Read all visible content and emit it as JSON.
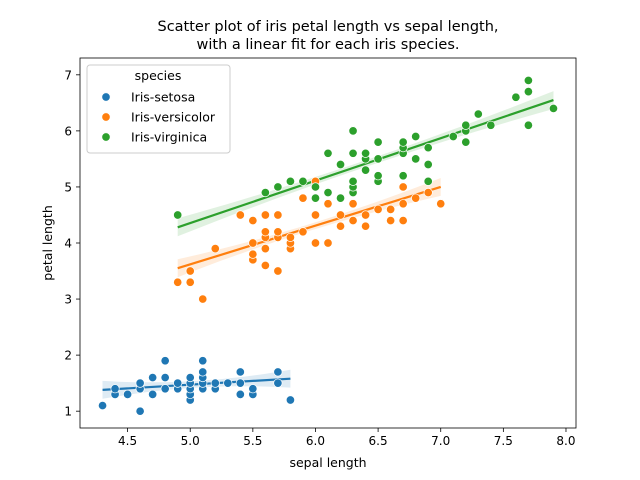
{
  "chart_data": {
    "type": "scatter",
    "title": [
      "Scatter plot of iris petal length vs sepal length,",
      "with a linear fit for each iris species."
    ],
    "xlabel": "sepal length",
    "ylabel": "petal length",
    "xlim": [
      4.12,
      8.08
    ],
    "ylim": [
      0.7,
      7.3
    ],
    "xticks": [
      "4.5",
      "5.0",
      "5.5",
      "6.0",
      "6.5",
      "7.0",
      "7.5",
      "8.0"
    ],
    "yticks": [
      "1",
      "2",
      "3",
      "4",
      "5",
      "6",
      "7"
    ],
    "grid": false,
    "legend": {
      "title": "species",
      "placement": "top-left"
    },
    "series": [
      {
        "name": "Iris-setosa",
        "color": "#1f77b4",
        "points": [
          [
            4.3,
            1.1
          ],
          [
            4.4,
            1.3
          ],
          [
            4.4,
            1.4
          ],
          [
            4.5,
            1.3
          ],
          [
            4.6,
            1.0
          ],
          [
            4.6,
            1.4
          ],
          [
            4.6,
            1.5
          ],
          [
            4.7,
            1.3
          ],
          [
            4.7,
            1.6
          ],
          [
            4.8,
            1.4
          ],
          [
            4.8,
            1.6
          ],
          [
            4.8,
            1.9
          ],
          [
            4.9,
            1.4
          ],
          [
            4.9,
            1.5
          ],
          [
            5.0,
            1.2
          ],
          [
            5.0,
            1.3
          ],
          [
            5.0,
            1.4
          ],
          [
            5.0,
            1.5
          ],
          [
            5.0,
            1.6
          ],
          [
            5.1,
            1.4
          ],
          [
            5.1,
            1.5
          ],
          [
            5.1,
            1.6
          ],
          [
            5.1,
            1.7
          ],
          [
            5.1,
            1.9
          ],
          [
            5.2,
            1.4
          ],
          [
            5.2,
            1.5
          ],
          [
            5.3,
            1.5
          ],
          [
            5.4,
            1.3
          ],
          [
            5.4,
            1.5
          ],
          [
            5.4,
            1.7
          ],
          [
            5.5,
            1.3
          ],
          [
            5.5,
            1.4
          ],
          [
            5.7,
            1.5
          ],
          [
            5.7,
            1.7
          ],
          [
            5.8,
            1.2
          ]
        ],
        "fit": [
          [
            4.3,
            1.38
          ],
          [
            5.8,
            1.58
          ]
        ]
      },
      {
        "name": "Iris-versicolor",
        "color": "#ff7f0e",
        "points": [
          [
            4.9,
            3.3
          ],
          [
            5.0,
            3.3
          ],
          [
            5.0,
            3.5
          ],
          [
            5.1,
            3.0
          ],
          [
            5.2,
            3.9
          ],
          [
            5.4,
            4.5
          ],
          [
            5.5,
            3.7
          ],
          [
            5.5,
            3.8
          ],
          [
            5.5,
            4.0
          ],
          [
            5.5,
            4.4
          ],
          [
            5.6,
            3.6
          ],
          [
            5.6,
            3.9
          ],
          [
            5.6,
            4.1
          ],
          [
            5.6,
            4.2
          ],
          [
            5.6,
            4.5
          ],
          [
            5.7,
            3.5
          ],
          [
            5.7,
            4.1
          ],
          [
            5.7,
            4.2
          ],
          [
            5.7,
            4.5
          ],
          [
            5.8,
            3.9
          ],
          [
            5.8,
            4.0
          ],
          [
            5.8,
            4.1
          ],
          [
            5.9,
            4.2
          ],
          [
            5.9,
            4.8
          ],
          [
            6.0,
            4.0
          ],
          [
            6.0,
            4.5
          ],
          [
            6.0,
            5.1
          ],
          [
            6.1,
            4.0
          ],
          [
            6.1,
            4.7
          ],
          [
            6.2,
            4.3
          ],
          [
            6.2,
            4.5
          ],
          [
            6.3,
            4.4
          ],
          [
            6.3,
            4.7
          ],
          [
            6.3,
            4.9
          ],
          [
            6.4,
            4.3
          ],
          [
            6.4,
            4.5
          ],
          [
            6.5,
            4.6
          ],
          [
            6.6,
            4.4
          ],
          [
            6.6,
            4.6
          ],
          [
            6.7,
            4.4
          ],
          [
            6.7,
            4.7
          ],
          [
            6.7,
            5.0
          ],
          [
            6.8,
            4.8
          ],
          [
            6.9,
            4.9
          ],
          [
            7.0,
            4.7
          ]
        ],
        "fit": [
          [
            4.9,
            3.55
          ],
          [
            7.0,
            5.0
          ]
        ]
      },
      {
        "name": "Iris-virginica",
        "color": "#2ca02c",
        "points": [
          [
            4.9,
            4.5
          ],
          [
            5.6,
            4.9
          ],
          [
            5.7,
            5.0
          ],
          [
            5.8,
            5.1
          ],
          [
            5.9,
            5.1
          ],
          [
            6.0,
            4.8
          ],
          [
            6.0,
            5.0
          ],
          [
            6.1,
            4.9
          ],
          [
            6.1,
            5.6
          ],
          [
            6.2,
            4.8
          ],
          [
            6.2,
            5.4
          ],
          [
            6.3,
            4.9
          ],
          [
            6.3,
            5.0
          ],
          [
            6.3,
            5.1
          ],
          [
            6.3,
            5.6
          ],
          [
            6.3,
            6.0
          ],
          [
            6.4,
            5.3
          ],
          [
            6.4,
            5.5
          ],
          [
            6.4,
            5.6
          ],
          [
            6.5,
            5.1
          ],
          [
            6.5,
            5.2
          ],
          [
            6.5,
            5.5
          ],
          [
            6.5,
            5.8
          ],
          [
            6.7,
            5.2
          ],
          [
            6.7,
            5.6
          ],
          [
            6.7,
            5.7
          ],
          [
            6.7,
            5.8
          ],
          [
            6.8,
            5.5
          ],
          [
            6.8,
            5.9
          ],
          [
            6.9,
            5.1
          ],
          [
            6.9,
            5.4
          ],
          [
            6.9,
            5.7
          ],
          [
            7.1,
            5.9
          ],
          [
            7.2,
            5.8
          ],
          [
            7.2,
            6.0
          ],
          [
            7.2,
            6.1
          ],
          [
            7.3,
            6.3
          ],
          [
            7.4,
            6.1
          ],
          [
            7.6,
            6.6
          ],
          [
            7.7,
            6.1
          ],
          [
            7.7,
            6.7
          ],
          [
            7.7,
            6.9
          ],
          [
            7.9,
            6.4
          ]
        ],
        "fit": [
          [
            4.9,
            4.28
          ],
          [
            7.9,
            6.55
          ]
        ]
      }
    ]
  }
}
